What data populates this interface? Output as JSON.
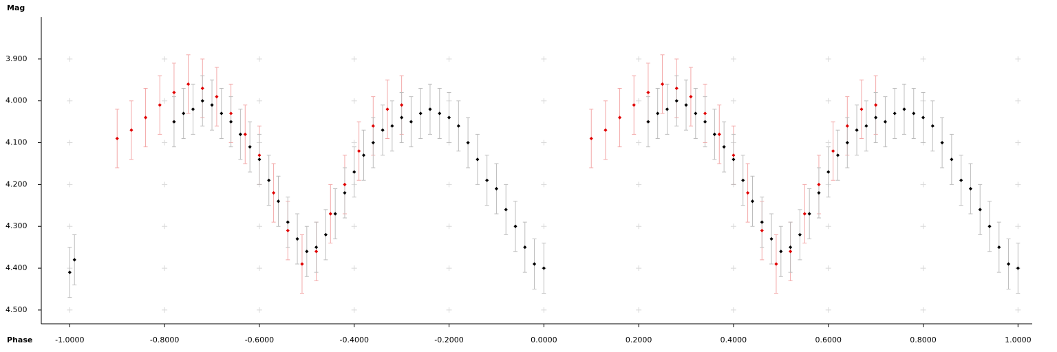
{
  "chart_data": {
    "type": "scatter",
    "xlabel": "Phase",
    "ylabel": "Mag",
    "xlim": [
      -1.06,
      1.03
    ],
    "ylim": [
      3.8,
      4.533
    ],
    "y_inverted": true,
    "xticks": [
      {
        "value": -1.0,
        "label": "-1.0000"
      },
      {
        "value": -0.8,
        "label": "-0.8000"
      },
      {
        "value": -0.6,
        "label": "-0.6000"
      },
      {
        "value": -0.4,
        "label": "-0.4000"
      },
      {
        "value": -0.2,
        "label": "-0.2000"
      },
      {
        "value": 0,
        "label": "0.0000"
      },
      {
        "value": 0.2,
        "label": "0.2000"
      },
      {
        "value": 0.4,
        "label": "0.4000"
      },
      {
        "value": 0.6,
        "label": "0.6000"
      },
      {
        "value": 0.8,
        "label": "0.8000"
      },
      {
        "value": 1.0,
        "label": "1.0000"
      }
    ],
    "yticks": [
      {
        "value": 3.9,
        "label": "3.900"
      },
      {
        "value": 4.0,
        "label": "4.000"
      },
      {
        "value": 4.1,
        "label": "4.100"
      },
      {
        "value": 4.2,
        "label": "4.200"
      },
      {
        "value": 4.3,
        "label": "4.300"
      },
      {
        "value": 4.4,
        "label": "4.400"
      },
      {
        "value": 4.5,
        "label": "4.500"
      }
    ],
    "grid": true,
    "series": [
      {
        "color": "#e00000",
        "error_color": "#f3a8a8",
        "error": 0.07,
        "x": [
          -0.9,
          -0.87,
          -0.84,
          -0.81,
          -0.78,
          -0.75,
          -0.72,
          -0.69,
          -0.66,
          -0.63,
          -0.6,
          -0.57,
          -0.54,
          -0.51,
          -0.48,
          -0.45,
          -0.42,
          -0.39,
          -0.36,
          -0.33,
          -0.3,
          0.1,
          0.13,
          0.16,
          0.19,
          0.22,
          0.25,
          0.28,
          0.31,
          0.34,
          0.37,
          0.4,
          0.43,
          0.46,
          0.49,
          0.52,
          0.55,
          0.58,
          0.61,
          0.64,
          0.67,
          0.7
        ],
        "values": [
          4.09,
          4.07,
          4.04,
          4.01,
          3.98,
          3.96,
          3.97,
          3.99,
          4.03,
          4.08,
          4.13,
          4.22,
          4.31,
          4.39,
          4.36,
          4.27,
          4.2,
          4.12,
          4.06,
          4.02,
          4.01,
          4.09,
          4.07,
          4.04,
          4.01,
          3.98,
          3.96,
          3.97,
          3.99,
          4.03,
          4.08,
          4.13,
          4.22,
          4.31,
          4.39,
          4.36,
          4.27,
          4.2,
          4.12,
          4.06,
          4.02,
          4.01
        ]
      },
      {
        "color": "#000000",
        "error_color": "#bdbdbd",
        "error": 0.06,
        "x": [
          -1.0,
          -0.99,
          -0.78,
          -0.76,
          -0.74,
          -0.72,
          -0.7,
          -0.68,
          -0.66,
          -0.64,
          -0.62,
          -0.6,
          -0.58,
          -0.56,
          -0.54,
          -0.52,
          -0.5,
          -0.48,
          -0.46,
          -0.44,
          -0.42,
          -0.4,
          -0.38,
          -0.36,
          -0.34,
          -0.32,
          -0.3,
          -0.28,
          -0.26,
          -0.24,
          -0.22,
          -0.2,
          -0.18,
          -0.16,
          -0.14,
          -0.12,
          -0.1,
          -0.08,
          -0.06,
          -0.04,
          -0.02,
          0.0,
          0.22,
          0.24,
          0.26,
          0.28,
          0.3,
          0.32,
          0.34,
          0.36,
          0.38,
          0.4,
          0.42,
          0.44,
          0.46,
          0.48,
          0.5,
          0.52,
          0.54,
          0.56,
          0.58,
          0.6,
          0.62,
          0.64,
          0.66,
          0.68,
          0.7,
          0.72,
          0.74,
          0.76,
          0.78,
          0.8,
          0.82,
          0.84,
          0.86,
          0.88,
          0.9,
          0.92,
          0.94,
          0.96,
          0.98,
          1.0
        ],
        "values": [
          4.41,
          4.38,
          4.05,
          4.03,
          4.02,
          4.0,
          4.01,
          4.03,
          4.05,
          4.08,
          4.11,
          4.14,
          4.19,
          4.24,
          4.29,
          4.33,
          4.36,
          4.35,
          4.32,
          4.27,
          4.22,
          4.17,
          4.13,
          4.1,
          4.07,
          4.06,
          4.04,
          4.05,
          4.03,
          4.02,
          4.03,
          4.04,
          4.06,
          4.1,
          4.14,
          4.19,
          4.21,
          4.26,
          4.3,
          4.35,
          4.39,
          4.4,
          4.05,
          4.03,
          4.02,
          4.0,
          4.01,
          4.03,
          4.05,
          4.08,
          4.11,
          4.14,
          4.19,
          4.24,
          4.29,
          4.33,
          4.36,
          4.35,
          4.32,
          4.27,
          4.22,
          4.17,
          4.13,
          4.1,
          4.07,
          4.06,
          4.04,
          4.05,
          4.03,
          4.02,
          4.03,
          4.04,
          4.06,
          4.1,
          4.14,
          4.19,
          4.21,
          4.26,
          4.3,
          4.35,
          4.39,
          4.4
        ]
      }
    ]
  }
}
